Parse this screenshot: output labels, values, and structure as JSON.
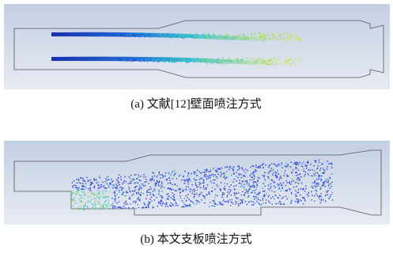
{
  "figures": [
    {
      "caption": "(a) 文献[12]壁面喷注方式"
    },
    {
      "caption": "(b) 本文支板喷注方式"
    }
  ]
}
